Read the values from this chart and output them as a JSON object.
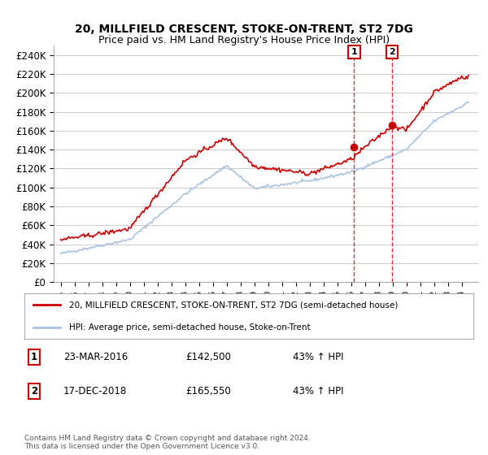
{
  "title": "20, MILLFIELD CRESCENT, STOKE-ON-TRENT, ST2 7DG",
  "subtitle": "Price paid vs. HM Land Registry's House Price Index (HPI)",
  "ylabel_ticks": [
    "£0",
    "£20K",
    "£40K",
    "£60K",
    "£80K",
    "£100K",
    "£120K",
    "£140K",
    "£160K",
    "£180K",
    "£200K",
    "£220K",
    "£240K"
  ],
  "ytick_values": [
    0,
    20000,
    40000,
    60000,
    80000,
    100000,
    120000,
    140000,
    160000,
    180000,
    200000,
    220000,
    240000
  ],
  "ylim": [
    0,
    250000
  ],
  "background_color": "#ffffff",
  "grid_color": "#cccccc",
  "hpi_color": "#aac4e0",
  "price_color": "#cc0000",
  "transactions": [
    {
      "date": "23-MAR-2016",
      "price": 142500,
      "label": "1",
      "pct": "43% ↑ HPI",
      "year": 2016.22
    },
    {
      "date": "17-DEC-2018",
      "price": 165550,
      "label": "2",
      "pct": "43% ↑ HPI",
      "year": 2018.96
    }
  ],
  "legend_line1": "20, MILLFIELD CRESCENT, STOKE-ON-TRENT, ST2 7DG (semi-detached house)",
  "legend_line2": "HPI: Average price, semi-detached house, Stoke-on-Trent",
  "footnote1": "Contains HM Land Registry data © Crown copyright and database right 2024.",
  "footnote2": "This data is licensed under the Open Government Licence v3.0."
}
